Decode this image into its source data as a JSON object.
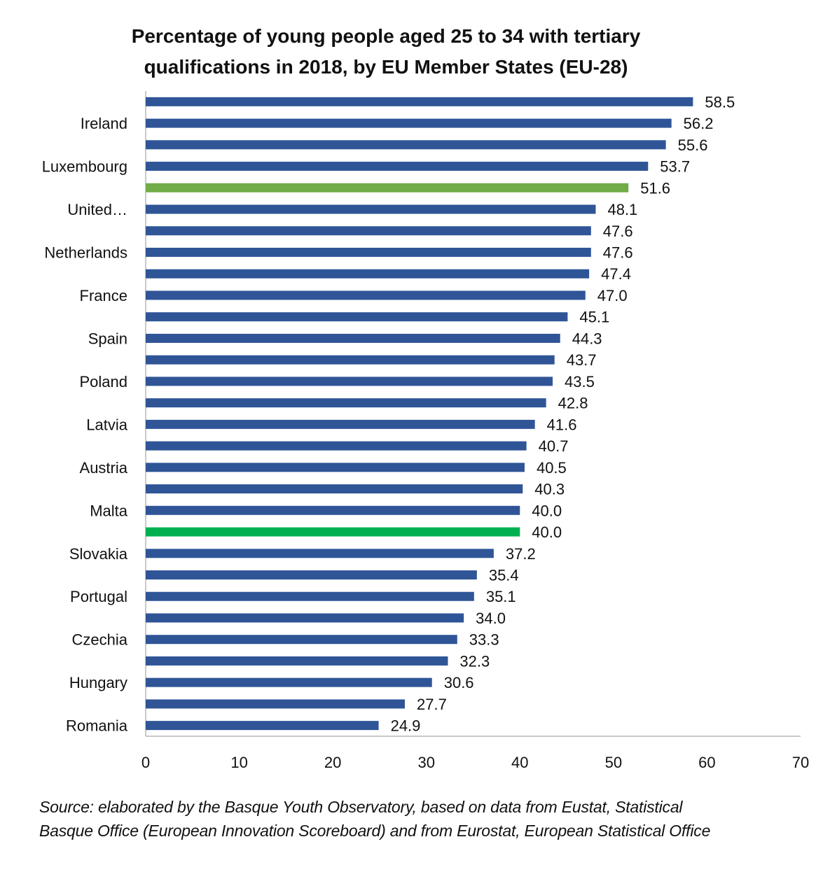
{
  "chart_data": {
    "type": "bar",
    "orientation": "horizontal",
    "title": "Percentage of young people aged 25 to 34 with tertiary qualifications in 2018, by EU Member States (EU-28)",
    "categories": [
      "",
      "Ireland",
      "",
      "Luxembourg",
      "",
      "United…",
      "",
      "Netherlands",
      "",
      "France",
      "",
      "Spain",
      "",
      "Poland",
      "",
      "Latvia",
      "",
      "Austria",
      "",
      "Malta",
      "",
      "Slovakia",
      "",
      "Portugal",
      "",
      "Czechia",
      "",
      "Hungary",
      "",
      "Romania"
    ],
    "values": [
      58.5,
      56.2,
      55.6,
      53.7,
      51.6,
      48.1,
      47.6,
      47.6,
      47.4,
      47.0,
      45.1,
      44.3,
      43.7,
      43.5,
      42.8,
      41.6,
      40.7,
      40.5,
      40.3,
      40.0,
      40.0,
      37.2,
      35.4,
      35.1,
      34.0,
      33.3,
      32.3,
      30.6,
      27.7,
      24.9
    ],
    "data_labels": [
      "58.5",
      "56.2",
      "55.6",
      "53.7",
      "51.6",
      "48.1",
      "47.6",
      "47.6",
      "47.4",
      "47.0",
      "45.1",
      "44.3",
      "43.7",
      "43.5",
      "42.8",
      "41.6",
      "40.7",
      "40.5",
      "40.3",
      "40.0",
      "40.0",
      "37.2",
      "35.4",
      "35.1",
      "34.0",
      "33.3",
      "32.3",
      "30.6",
      "27.7",
      "24.9"
    ],
    "bar_colors": [
      "#2F5597",
      "#2F5597",
      "#2F5597",
      "#2F5597",
      "#70AD47",
      "#2F5597",
      "#2F5597",
      "#2F5597",
      "#2F5597",
      "#2F5597",
      "#2F5597",
      "#2F5597",
      "#2F5597",
      "#2F5597",
      "#2F5597",
      "#2F5597",
      "#2F5597",
      "#2F5597",
      "#2F5597",
      "#2F5597",
      "#00B050",
      "#2F5597",
      "#2F5597",
      "#2F5597",
      "#2F5597",
      "#2F5597",
      "#2F5597",
      "#2F5597",
      "#2F5597",
      "#2F5597"
    ],
    "xlim": [
      0,
      70
    ],
    "xticks": [
      "0",
      "10",
      "20",
      "30",
      "40",
      "50",
      "60",
      "70"
    ],
    "xlabel": "",
    "ylabel": "",
    "grid": false,
    "legend": "none"
  },
  "title_lines": [
    "Percentage of young people aged 25 to 34 with tertiary",
    "qualifications in 2018, by EU Member States (EU-28)"
  ],
  "source_lines": [
    "Source: elaborated by the Basque Youth Observatory, based on data from Eustat, Statistical",
    "Basque Office (European Innovation Scoreboard) and from Eurostat, European Statistical Office"
  ]
}
